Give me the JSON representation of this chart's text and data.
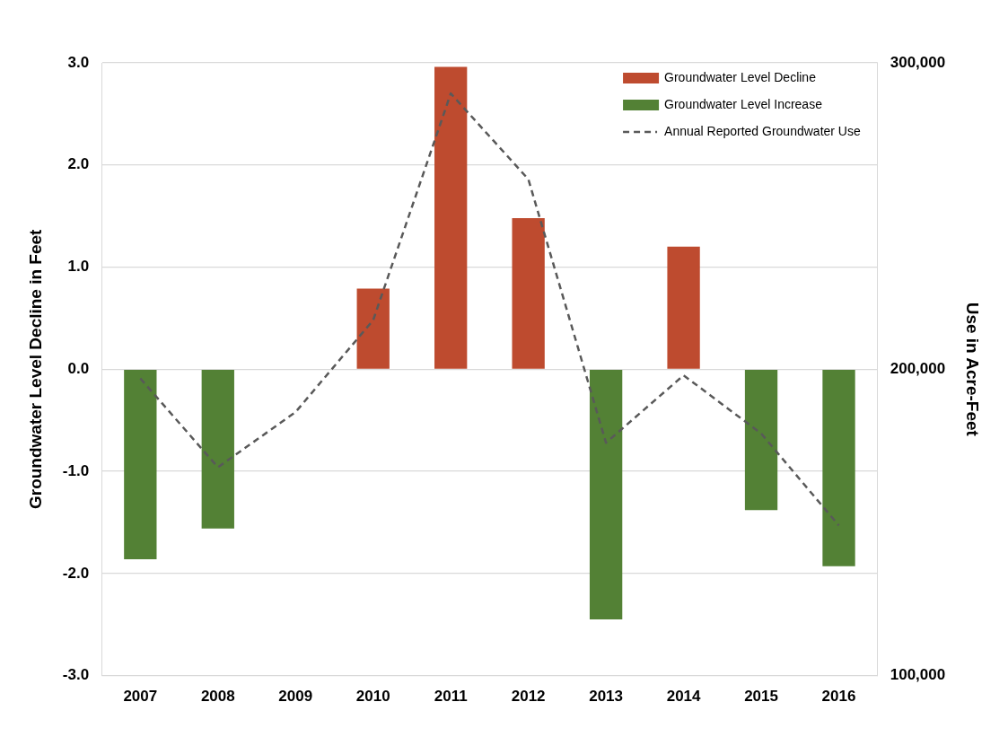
{
  "chart_data": {
    "type": "bar",
    "categories": [
      "2007",
      "2008",
      "2009",
      "2010",
      "2011",
      "2012",
      "2013",
      "2014",
      "2015",
      "2016"
    ],
    "series": [
      {
        "name": "Groundwater Level Decline",
        "color": "#be4b2f",
        "values": [
          null,
          null,
          null,
          0.79,
          2.96,
          1.48,
          null,
          1.2,
          null,
          null
        ]
      },
      {
        "name": "Groundwater Level Increase",
        "color": "#538135",
        "values": [
          -1.86,
          -1.56,
          null,
          null,
          null,
          null,
          -2.45,
          null,
          -1.38,
          -1.93
        ]
      },
      {
        "name": "Annual Reported Groundwater Use",
        "type": "line",
        "axis": "y2",
        "color": "#595959",
        "line_style": "dashed",
        "marker": "none",
        "values": [
          197000,
          168000,
          186000,
          216000,
          290000,
          262000,
          176000,
          198000,
          179000,
          149000
        ]
      }
    ],
    "stacked": true,
    "ylabel": "Groundwater Level Decline in Feet",
    "y2label": "Use in Acre-Feet",
    "ylim": [
      -3,
      3
    ],
    "yticks": [
      {
        "value": -3,
        "label": "-3.0"
      },
      {
        "value": -2,
        "label": "-2.0"
      },
      {
        "value": -1,
        "label": "-1.0"
      },
      {
        "value": 0,
        "label": "0.0"
      },
      {
        "value": 1,
        "label": "1.0"
      },
      {
        "value": 2,
        "label": "2.0"
      },
      {
        "value": 3,
        "label": "3.0"
      }
    ],
    "y2lim": [
      100000,
      300000
    ],
    "y2ticks": [
      {
        "value": 100000,
        "label": "100,000"
      },
      {
        "value": 200000,
        "label": "200,000"
      },
      {
        "value": 300000,
        "label": "300,000"
      }
    ],
    "grid": "y",
    "legend": "top right"
  }
}
